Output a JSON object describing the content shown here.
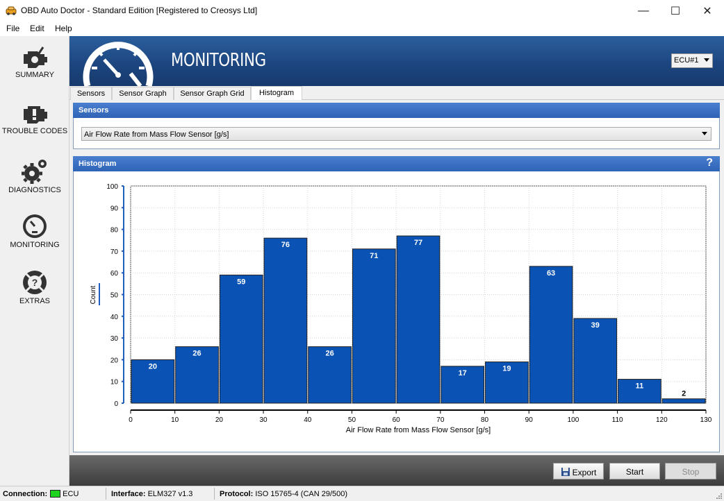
{
  "window": {
    "title": "OBD Auto Doctor - Standard Edition [Registered to Creosys Ltd]",
    "minimize": "—",
    "maximize": "☐",
    "close": "✕"
  },
  "menu": [
    "File",
    "Edit",
    "Help"
  ],
  "sidebar": [
    {
      "label": "SUMMARY",
      "icon": "engine-icon"
    },
    {
      "label": "TROUBLE CODES",
      "icon": "engine-warning-icon"
    },
    {
      "label": "DIAGNOSTICS",
      "icon": "gears-icon"
    },
    {
      "label": "MONITORING",
      "icon": "gauge-icon"
    },
    {
      "label": "EXTRAS",
      "icon": "lifebuoy-question-icon"
    }
  ],
  "header": {
    "title": "MONITORING",
    "ecu_selected": "ECU#1"
  },
  "tabs": [
    {
      "label": "Sensors",
      "active": false
    },
    {
      "label": "Sensor Graph",
      "active": false
    },
    {
      "label": "Sensor Graph Grid",
      "active": false
    },
    {
      "label": "Histogram",
      "active": true
    }
  ],
  "sensors_panel": {
    "title": "Sensors",
    "selected_sensor": "Air Flow Rate from Mass Flow Sensor [g/s]"
  },
  "histogram_panel": {
    "title": "Histogram",
    "help": "?"
  },
  "chart_data": {
    "type": "bar",
    "bin_edges": [
      0,
      10,
      20,
      30,
      40,
      50,
      60,
      70,
      80,
      90,
      100,
      110,
      120,
      130
    ],
    "values": [
      20,
      26,
      59,
      76,
      26,
      71,
      77,
      17,
      19,
      63,
      39,
      11,
      2
    ],
    "xlabel": "Air Flow Rate from Mass Flow Sensor [g/s]",
    "ylabel": "Count",
    "xlim": [
      0,
      130
    ],
    "ylim": [
      0,
      100
    ],
    "xticks": [
      0,
      10,
      20,
      30,
      40,
      50,
      60,
      70,
      80,
      90,
      100,
      110,
      120,
      130
    ],
    "yticks": [
      0,
      10,
      20,
      30,
      40,
      50,
      60,
      70,
      80,
      90,
      100
    ],
    "grid": true,
    "bar_color": "#0a52b3",
    "data_labels": true
  },
  "buttons": {
    "export": "Export",
    "start": "Start",
    "stop": "Stop"
  },
  "status": {
    "connection_label": "Connection:",
    "connection_value": "ECU",
    "interface_label": "Interface:",
    "interface_value": "ELM327 v1.3",
    "protocol_label": "Protocol:",
    "protocol_value": "ISO 15765-4 (CAN 29/500)"
  }
}
